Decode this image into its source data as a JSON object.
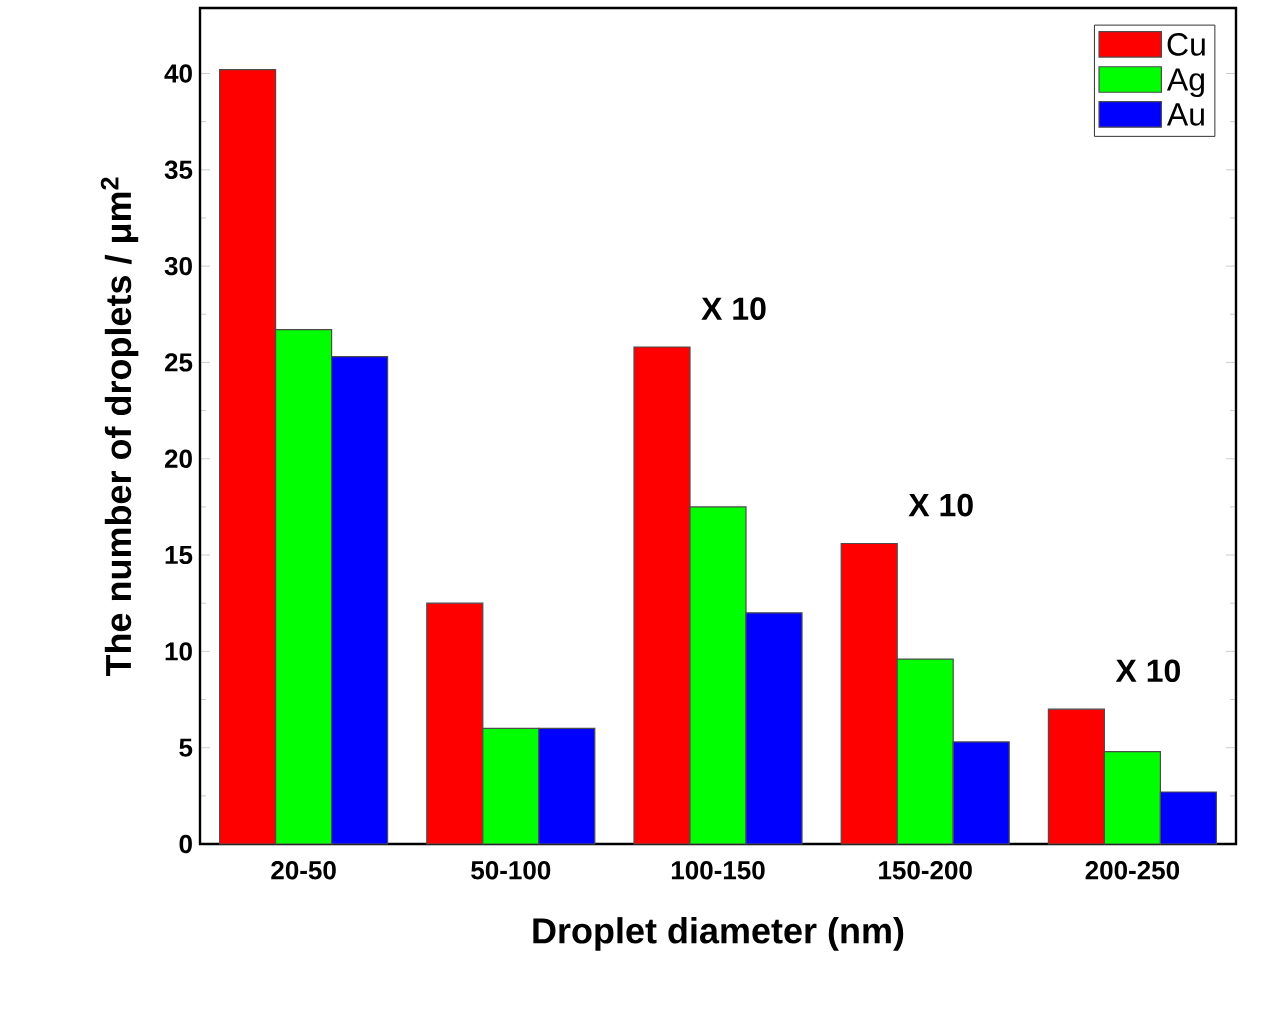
{
  "chart_data": {
    "type": "bar",
    "xlabel": "Droplet diameter (nm)",
    "ylabel": "The number of droplets / μm$^{2}$",
    "categories": [
      "20-50",
      "50-100",
      "100-150",
      "150-200",
      "200-250"
    ],
    "series": [
      {
        "name": "Cu",
        "color": "#ff0000",
        "values": [
          40.2,
          12.5,
          25.8,
          15.6,
          7.0
        ]
      },
      {
        "name": "Ag",
        "color": "#00ff00",
        "values": [
          26.7,
          6.0,
          17.5,
          9.6,
          4.8
        ]
      },
      {
        "name": "Au",
        "color": "#0000ff",
        "values": [
          25.3,
          6.0,
          12.0,
          5.3,
          2.7
        ]
      }
    ],
    "ylim": [
      0,
      43.4
    ],
    "yticks": [
      0,
      5,
      10,
      15,
      20,
      25,
      30,
      35,
      40
    ],
    "legend": "top right",
    "annotations": [
      "X 10",
      "X 10",
      "X 10"
    ]
  }
}
